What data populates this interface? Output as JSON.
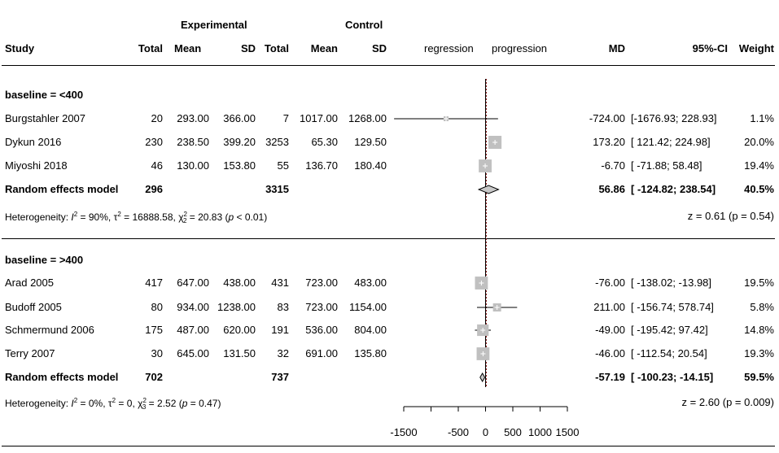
{
  "header": {
    "experimental": "Experimental",
    "control": "Control",
    "study": "Study",
    "total_e": "Total",
    "mean_e": "Mean",
    "sd_e": "SD",
    "total_c": "Total",
    "mean_c": "Mean",
    "sd_c": "SD",
    "regression": "regression",
    "progression": "progression",
    "md": "MD",
    "ci": "95%-CI",
    "weight": "Weight"
  },
  "groups": [
    {
      "label": "baseline = <400",
      "studies": [
        {
          "study": "Burgstahler 2007",
          "total_e": "20",
          "mean_e": "293.00",
          "sd_e": "366.00",
          "total_c": "7",
          "mean_c": "1017.00",
          "sd_c": "1268.00",
          "md": "-724.00",
          "ci": "[-1676.93; 228.93]",
          "weight": "1.1%"
        },
        {
          "study": "Dykun 2016",
          "total_e": "230",
          "mean_e": "238.50",
          "sd_e": "399.20",
          "total_c": "3253",
          "mean_c": "65.30",
          "sd_c": "129.50",
          "md": "173.20",
          "ci": "[ 121.42; 224.98]",
          "weight": "20.0%"
        },
        {
          "study": "Miyoshi 2018",
          "total_e": "46",
          "mean_e": "130.00",
          "sd_e": "153.80",
          "total_c": "55",
          "mean_c": "136.70",
          "sd_c": "180.40",
          "md": "-6.70",
          "ci": "[ -71.88; 58.48]",
          "weight": "19.4%"
        }
      ],
      "summary": {
        "label": "Random effects model",
        "total_e": "296",
        "total_c": "3315",
        "md": "56.86",
        "ci": "[ -124.82; 238.54]",
        "weight": "40.5%"
      },
      "heterogeneity": {
        "i2": "90%",
        "tau2": "16888.58",
        "chi2_df": "2",
        "chi2": "20.83",
        "p": "< 0.01"
      },
      "z_test": "z = 0.61 (p = 0.54)"
    },
    {
      "label": "baseline = >400",
      "studies": [
        {
          "study": "Arad 2005",
          "total_e": "417",
          "mean_e": "647.00",
          "sd_e": "438.00",
          "total_c": "431",
          "mean_c": "723.00",
          "sd_c": "483.00",
          "md": "-76.00",
          "ci": "[ -138.02; -13.98]",
          "weight": "19.5%"
        },
        {
          "study": "Budoff 2005",
          "total_e": "80",
          "mean_e": "934.00",
          "sd_e": "1238.00",
          "total_c": "83",
          "mean_c": "723.00",
          "sd_c": "1154.00",
          "md": "211.00",
          "ci": "[ -156.74; 578.74]",
          "weight": "5.8%"
        },
        {
          "study": "Schmermund 2006",
          "total_e": "175",
          "mean_e": "487.00",
          "sd_e": "620.00",
          "total_c": "191",
          "mean_c": "536.00",
          "sd_c": "804.00",
          "md": "-49.00",
          "ci": "[ -195.42; 97.42]",
          "weight": "14.8%"
        },
        {
          "study": "Terry 2007",
          "total_e": "30",
          "mean_e": "645.00",
          "sd_e": "131.50",
          "total_c": "32",
          "mean_c": "691.00",
          "sd_c": "135.80",
          "md": "-46.00",
          "ci": "[ -112.54; 20.54]",
          "weight": "19.3%"
        }
      ],
      "summary": {
        "label": "Random effects model",
        "total_e": "702",
        "total_c": "737",
        "md": "-57.19",
        "ci": "[ -100.23; -14.15]",
        "weight": "59.5%"
      },
      "heterogeneity": {
        "i2": "0%",
        "tau2": "0",
        "chi2_df": "3",
        "chi2": "2.52",
        "p": "= 0.47"
      },
      "z_test": "z = 2.60 (p = 0.009)"
    }
  ],
  "chart_data": {
    "type": "forest",
    "axis": {
      "min": -1500,
      "max": 1500,
      "ticks": [
        -1500,
        -500,
        0,
        500,
        1000,
        1500
      ],
      "reference_line": 0
    },
    "colors": {
      "box": "#c0c0c0",
      "reference": "#000000",
      "overall": "#8b1a1a"
    },
    "studies": [
      {
        "name": "Burgstahler 2007",
        "md": -724.0,
        "lo": -1676.93,
        "hi": 228.93,
        "weight": 1.1
      },
      {
        "name": "Dykun 2016",
        "md": 173.2,
        "lo": 121.42,
        "hi": 224.98,
        "weight": 20.0
      },
      {
        "name": "Miyoshi 2018",
        "md": -6.7,
        "lo": -71.88,
        "hi": 58.48,
        "weight": 19.4
      },
      {
        "name": "Arad 2005",
        "md": -76.0,
        "lo": -138.02,
        "hi": -13.98,
        "weight": 19.5
      },
      {
        "name": "Budoff 2005",
        "md": 211.0,
        "lo": -156.74,
        "hi": 578.74,
        "weight": 5.8
      },
      {
        "name": "Schmermund 2006",
        "md": -49.0,
        "lo": -195.42,
        "hi": 97.42,
        "weight": 14.8
      },
      {
        "name": "Terry 2007",
        "md": -46.0,
        "lo": -112.54,
        "hi": 20.54,
        "weight": 19.3
      }
    ],
    "summaries": [
      {
        "name": "Random effects model (<400)",
        "md": 56.86,
        "lo": -124.82,
        "hi": 238.54
      },
      {
        "name": "Random effects model (>400)",
        "md": -57.19,
        "lo": -100.23,
        "hi": -14.15
      }
    ],
    "overall_md": -0.5
  }
}
